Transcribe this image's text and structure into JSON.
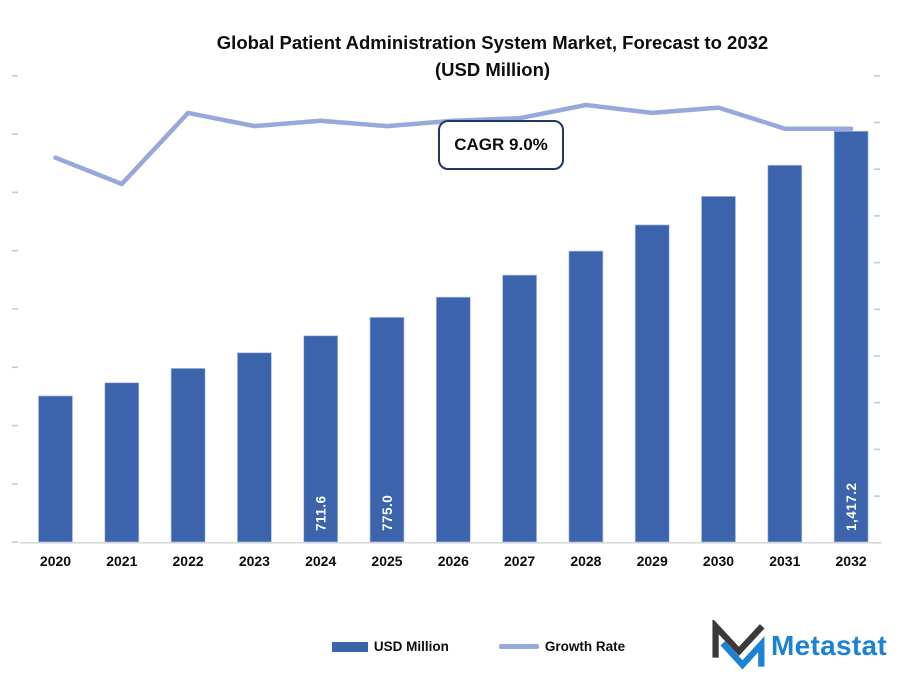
{
  "title": {
    "line1": "Global Patient Administration System Market, Forecast to 2032",
    "line2": "(USD Million)"
  },
  "annotation": {
    "cagr_label": "CAGR 9.0%"
  },
  "colors": {
    "bar": "#3C64AD",
    "bar_edge": "#AFC2E6",
    "line": "#97A9DC",
    "axis_line": "#D9D9D9",
    "tick_mark": "#C8C8C8",
    "annotation_border": "#203864",
    "label_text": "#0d0d0d",
    "bar_label_text": "#ffffff",
    "logo_blue": "#1C82D4",
    "logo_dark": "#3A3A3C"
  },
  "logo": {
    "text": "Metastat"
  },
  "chart_data": {
    "type": "combo-bar-line",
    "title": "Global Patient Administration System Market, Forecast to 2032 (USD Million)",
    "categories": [
      "2020",
      "2021",
      "2022",
      "2023",
      "2024",
      "2025",
      "2026",
      "2027",
      "2028",
      "2029",
      "2030",
      "2031",
      "2032"
    ],
    "series": [
      {
        "name": "USD Million",
        "type": "bar",
        "color": "#3C64AD",
        "values": [
          504.0,
          549.4,
          599.0,
          652.9,
          711.6,
          775.0,
          844.7,
          920.8,
          1003.6,
          1094.0,
          1192.4,
          1299.8,
          1417.2
        ],
        "data_labels": {
          "2024": "711.6",
          "2025": "775.0",
          "2032": "1,417.2"
        },
        "labeled_categories": [
          "2024",
          "2025",
          "2032"
        ],
        "values_note": "only 2024, 2025 and 2032 are labeled on the chart; remaining values estimated from bar heights at ~9% CAGR"
      },
      {
        "name": "Growth Rate",
        "type": "line",
        "color": "#97A9DC",
        "unit": "%",
        "estimated": true,
        "axis_labels_visible": false,
        "values": [
          9.0,
          8.5,
          9.85,
          9.6,
          9.7,
          9.6,
          9.7,
          9.75,
          10.0,
          9.85,
          9.95,
          9.55,
          9.55
        ]
      }
    ],
    "annotation": "CAGR 9.0%",
    "ylim": [
      0,
      1500
    ],
    "y2lim_estimated": [
      8.0,
      10.5
    ],
    "gridlines": false,
    "legend_position": "bottom"
  }
}
